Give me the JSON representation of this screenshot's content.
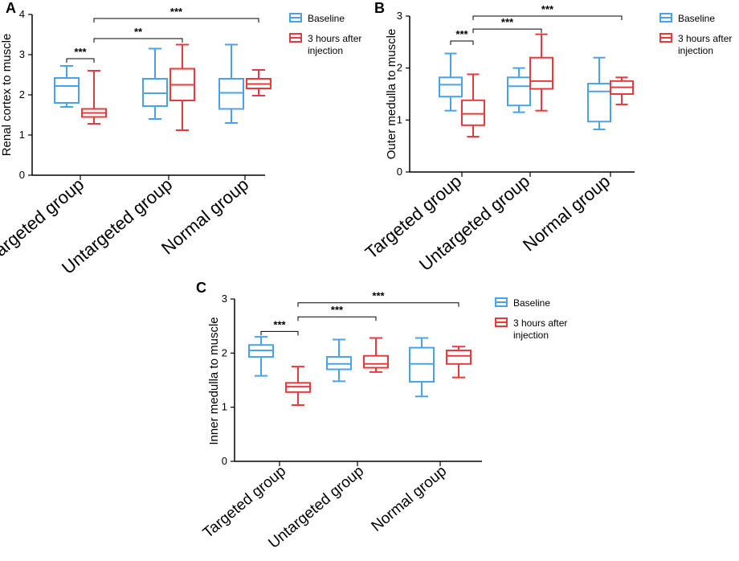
{
  "colors": {
    "baseline": "#4aa3e8",
    "after": "#e8393c",
    "axis": "#000000"
  },
  "legend": {
    "baseline": "Baseline",
    "after_line1": "3 hours after",
    "after_line2": "injection"
  },
  "chart_data": [
    {
      "type": "box",
      "panel_label": "A",
      "ylabel": "Renal cortex to muscle",
      "ylim": [
        0,
        4
      ],
      "yticks": [
        0,
        1,
        2,
        3,
        4
      ],
      "categories": [
        "Targeted group",
        "Untargeted group",
        "Normal group"
      ],
      "series": [
        {
          "name": "Baseline",
          "boxes": [
            {
              "min": 1.7,
              "q1": 1.8,
              "median": 2.22,
              "q3": 2.42,
              "max": 2.72
            },
            {
              "min": 1.4,
              "q1": 1.72,
              "median": 2.04,
              "q3": 2.4,
              "max": 3.15
            },
            {
              "min": 1.3,
              "q1": 1.65,
              "median": 2.05,
              "q3": 2.4,
              "max": 3.25
            }
          ]
        },
        {
          "name": "3 hours after injection",
          "boxes": [
            {
              "min": 1.28,
              "q1": 1.45,
              "median": 1.55,
              "q3": 1.65,
              "max": 2.6
            },
            {
              "min": 1.12,
              "q1": 1.86,
              "median": 2.25,
              "q3": 2.65,
              "max": 3.25
            },
            {
              "min": 1.98,
              "q1": 2.16,
              "median": 2.27,
              "q3": 2.4,
              "max": 2.62
            }
          ]
        }
      ],
      "significance": [
        {
          "from": "Targeted group/Baseline",
          "to": "Targeted group/3 hours after injection",
          "label": "***",
          "y": 2.9
        },
        {
          "from": "Targeted group/3 hours after injection",
          "to": "Untargeted group/3 hours after injection",
          "label": "**",
          "y": 3.4
        },
        {
          "from": "Targeted group/3 hours after injection",
          "to": "Normal group/3 hours after injection",
          "label": "***",
          "y": 3.9
        }
      ]
    },
    {
      "type": "box",
      "panel_label": "B",
      "ylabel": "Outer medulla to muscle",
      "ylim": [
        0,
        3
      ],
      "yticks": [
        0,
        1,
        2,
        3
      ],
      "categories": [
        "Targeted group",
        "Untargeted group",
        "Normal group"
      ],
      "series": [
        {
          "name": "Baseline",
          "boxes": [
            {
              "min": 1.18,
              "q1": 1.45,
              "median": 1.68,
              "q3": 1.82,
              "max": 2.28
            },
            {
              "min": 1.15,
              "q1": 1.28,
              "median": 1.65,
              "q3": 1.82,
              "max": 2.0
            },
            {
              "min": 0.82,
              "q1": 0.97,
              "median": 1.55,
              "q3": 1.7,
              "max": 2.2
            }
          ]
        },
        {
          "name": "3 hours after injection",
          "boxes": [
            {
              "min": 0.68,
              "q1": 0.9,
              "median": 1.12,
              "q3": 1.38,
              "max": 1.88
            },
            {
              "min": 1.18,
              "q1": 1.6,
              "median": 1.75,
              "q3": 2.2,
              "max": 2.65
            },
            {
              "min": 1.3,
              "q1": 1.5,
              "median": 1.63,
              "q3": 1.75,
              "max": 1.82
            }
          ]
        }
      ],
      "significance": [
        {
          "from": "Targeted group/Baseline",
          "to": "Targeted group/3 hours after injection",
          "label": "***",
          "y": 2.52
        },
        {
          "from": "Targeted group/3 hours after injection",
          "to": "Untargeted group/3 hours after injection",
          "label": "***",
          "y": 2.75
        },
        {
          "from": "Targeted group/3 hours after injection",
          "to": "Normal group/3 hours after injection",
          "label": "***",
          "y": 3.0
        }
      ]
    },
    {
      "type": "box",
      "panel_label": "C",
      "ylabel": "Inner medulla to muscle",
      "ylim": [
        0,
        3
      ],
      "yticks": [
        0,
        1,
        2,
        3
      ],
      "categories": [
        "Targeted group",
        "Untargeted group",
        "Normal group"
      ],
      "series": [
        {
          "name": "Baseline",
          "boxes": [
            {
              "min": 1.58,
              "q1": 1.93,
              "median": 2.05,
              "q3": 2.15,
              "max": 2.3
            },
            {
              "min": 1.48,
              "q1": 1.7,
              "median": 1.8,
              "q3": 1.93,
              "max": 2.25
            },
            {
              "min": 1.2,
              "q1": 1.47,
              "median": 1.8,
              "q3": 2.1,
              "max": 2.28
            }
          ]
        },
        {
          "name": "3 hours after injection",
          "boxes": [
            {
              "min": 1.04,
              "q1": 1.28,
              "median": 1.38,
              "q3": 1.45,
              "max": 1.75
            },
            {
              "min": 1.65,
              "q1": 1.73,
              "median": 1.8,
              "q3": 1.95,
              "max": 2.28
            },
            {
              "min": 1.55,
              "q1": 1.8,
              "median": 1.95,
              "q3": 2.05,
              "max": 2.12
            }
          ]
        }
      ],
      "significance": [
        {
          "from": "Targeted group/Baseline",
          "to": "Targeted group/3 hours after injection",
          "label": "***",
          "y": 2.4
        },
        {
          "from": "Targeted group/3 hours after injection",
          "to": "Untargeted group/3 hours after injection",
          "label": "***",
          "y": 2.67
        },
        {
          "from": "Targeted group/3 hours after injection",
          "to": "Normal group/3 hours after injection",
          "label": "***",
          "y": 2.93
        }
      ]
    }
  ]
}
